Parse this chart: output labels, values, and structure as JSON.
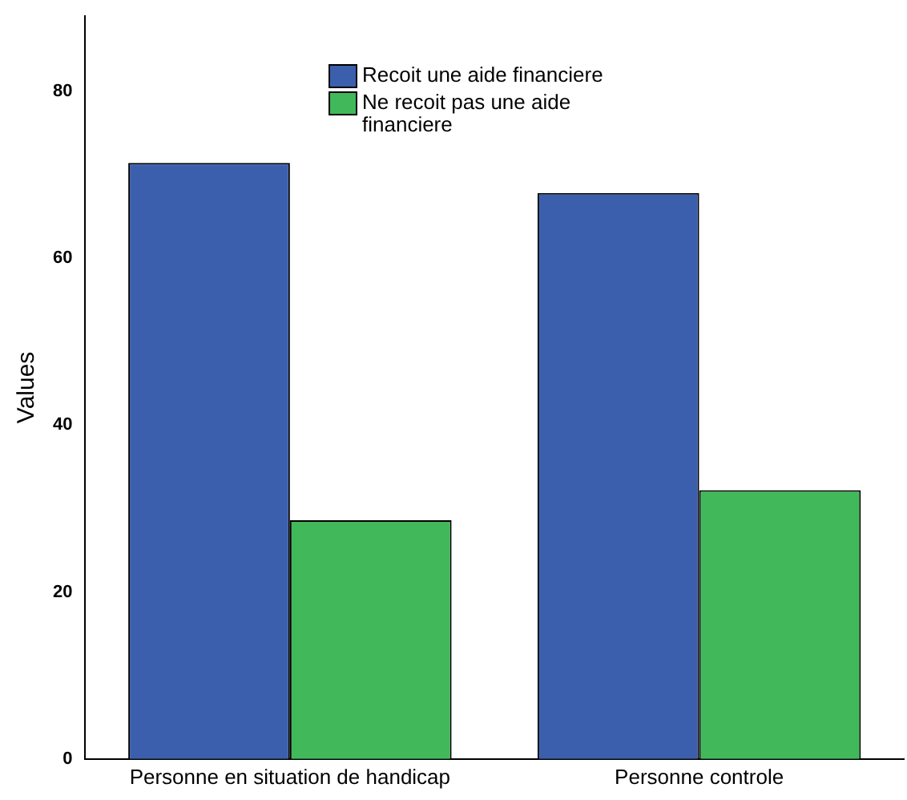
{
  "chart_data": {
    "type": "bar",
    "ylabel": "Values",
    "categories": [
      "Personne en situation de handicap",
      "Personne controle"
    ],
    "series": [
      {
        "name": "Recoit une aide financiere",
        "color": "#3c5fad",
        "values": [
          71.4,
          67.8
        ]
      },
      {
        "name": "Ne recoit pas une aide financiere",
        "color": "#41b85a",
        "values": [
          28.6,
          32.2
        ]
      }
    ],
    "ylim": [
      0,
      89
    ],
    "yticks": [
      0,
      20,
      40,
      60,
      80
    ],
    "grid": false,
    "legend": "top"
  }
}
